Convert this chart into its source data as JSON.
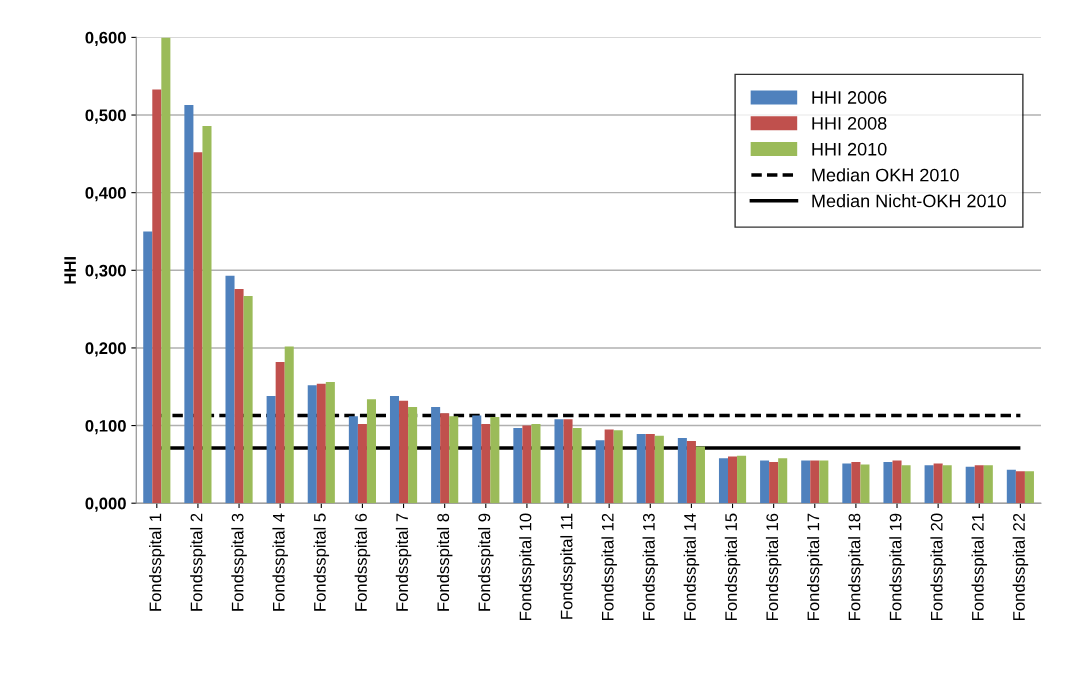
{
  "chart_data": {
    "type": "bar",
    "ylabel": "HHI",
    "categories": [
      "Fondsspital 1",
      "Fondsspital 2",
      "Fondsspital 3",
      "Fondsspital 4",
      "Fondsspital 5",
      "Fondsspital 6",
      "Fondsspital 7",
      "Fondsspital 8",
      "Fondsspital 9",
      "Fondsspital 10",
      "Fondsspital 11",
      "Fondsspital 12",
      "Fondsspital 13",
      "Fondsspital 14",
      "Fondsspital 15",
      "Fondsspital 16",
      "Fondsspital 17",
      "Fondsspital 18",
      "Fondsspital 19",
      "Fondsspital 20",
      "Fondsspital 21",
      "Fondsspital 22"
    ],
    "series": [
      {
        "name": "HHI 2006",
        "color": "#4f81bd",
        "values": [
          0.35,
          0.513,
          0.293,
          0.138,
          0.152,
          0.112,
          0.138,
          0.124,
          0.113,
          0.097,
          0.108,
          0.081,
          0.089,
          0.084,
          0.058,
          0.055,
          0.055,
          0.051,
          0.053,
          0.049,
          0.047,
          0.043
        ]
      },
      {
        "name": "HHI 2008",
        "color": "#c0504d",
        "values": [
          0.533,
          0.452,
          0.276,
          0.182,
          0.154,
          0.102,
          0.132,
          0.116,
          0.102,
          0.1,
          0.108,
          0.095,
          0.089,
          0.08,
          0.06,
          0.053,
          0.055,
          0.053,
          0.055,
          0.051,
          0.049,
          0.041
        ]
      },
      {
        "name": "HHI 2010",
        "color": "#9bbb59",
        "values": [
          0.6,
          0.486,
          0.267,
          0.202,
          0.156,
          0.134,
          0.124,
          0.112,
          0.111,
          0.102,
          0.097,
          0.094,
          0.087,
          0.073,
          0.061,
          0.058,
          0.055,
          0.05,
          0.049,
          0.049,
          0.049,
          0.041
        ]
      }
    ],
    "ref_lines": [
      {
        "axis": "y",
        "value": 0.113,
        "label": "Median OKH 2010",
        "color": "#000000",
        "line_style": "dashed"
      },
      {
        "axis": "y",
        "value": 0.071,
        "label": "Median Nicht-OKH 2010",
        "color": "#000000",
        "line_style": "solid"
      }
    ],
    "ylim": [
      0,
      0.6
    ],
    "yticks": [
      {
        "value": 0,
        "label": "0,000"
      },
      {
        "value": 0.1,
        "label": "0,100"
      },
      {
        "value": 0.2,
        "label": "0,200"
      },
      {
        "value": 0.3,
        "label": "0,300"
      },
      {
        "value": 0.4,
        "label": "0,400"
      },
      {
        "value": 0.5,
        "label": "0,500"
      },
      {
        "value": 0.6,
        "label": "0,600"
      }
    ],
    "grid": "y",
    "legend": "top right"
  }
}
